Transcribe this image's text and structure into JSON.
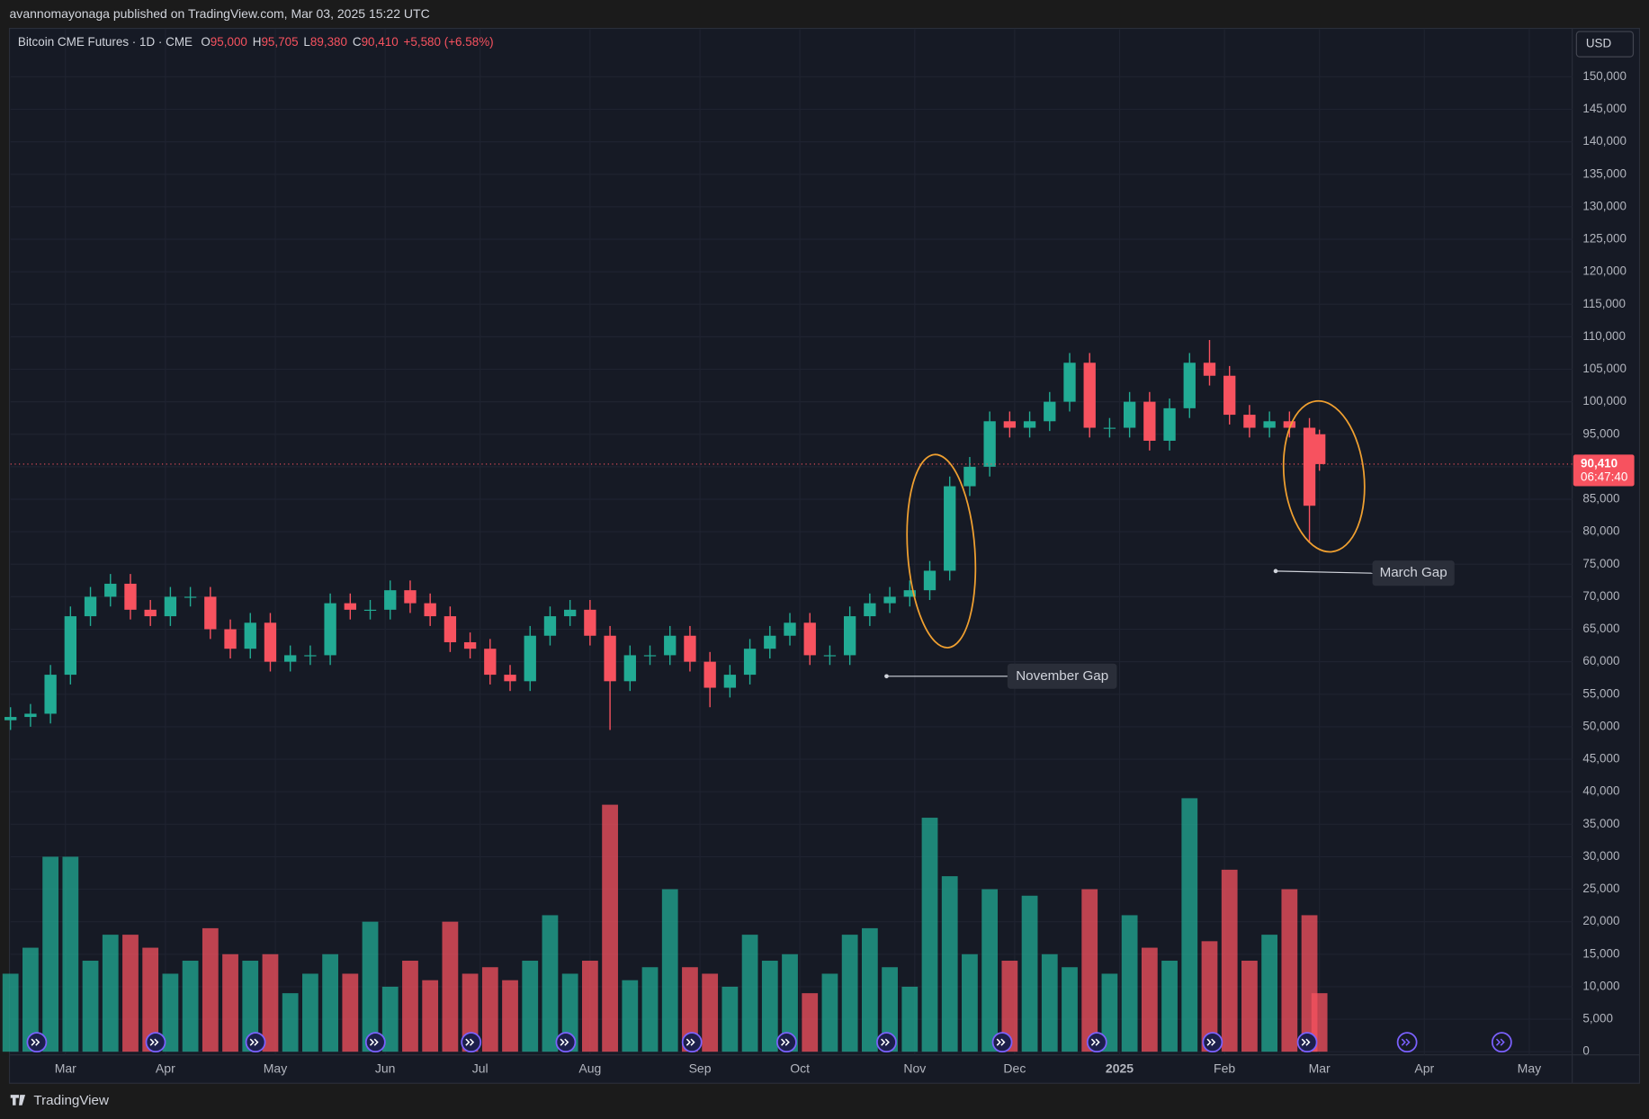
{
  "header": {
    "title": "avannomayonaga published on TradingView.com, Mar 03, 2025 15:22 UTC"
  },
  "legend": {
    "symbol": "Bitcoin CME Futures · 1D · CME",
    "items": [
      {
        "key": "O",
        "value": "95,000"
      },
      {
        "key": "H",
        "value": "95,705"
      },
      {
        "key": "L",
        "value": "89,380"
      },
      {
        "key": "C",
        "value": "90,410"
      }
    ],
    "change": "+5,580 (+6.58%)"
  },
  "currency": "USD",
  "footer": {
    "brand": "TradingView"
  },
  "chart_data": {
    "type": "candlestick",
    "up_color": "#22ab94",
    "down_color": "#f7525f",
    "grid": true,
    "x": [
      0,
      4,
      8,
      12,
      16,
      20,
      24,
      28,
      32,
      36,
      40,
      44,
      48,
      52,
      56,
      60,
      64,
      68,
      72,
      76,
      80,
      84,
      88,
      92,
      96,
      100,
      104,
      108,
      112,
      116,
      120,
      124,
      128,
      132,
      136,
      140,
      144,
      148,
      152,
      156,
      160,
      164,
      168,
      172,
      176,
      180,
      184,
      188,
      192,
      196,
      200,
      204,
      208,
      212,
      216,
      220,
      224,
      228,
      232,
      236,
      240,
      244,
      248,
      252,
      256,
      260,
      262
    ],
    "open": [
      51000,
      51500,
      52000,
      58000,
      67000,
      70000,
      72000,
      68000,
      67000,
      70000,
      70000,
      65000,
      62000,
      66000,
      60000,
      61000,
      61000,
      69000,
      68000,
      68000,
      71000,
      69000,
      67000,
      63000,
      62000,
      58000,
      57000,
      64000,
      67000,
      68000,
      64000,
      57000,
      61000,
      61000,
      64000,
      60000,
      56000,
      58000,
      62000,
      64000,
      66000,
      61000,
      61000,
      67000,
      69000,
      70000,
      71000,
      74000,
      87000,
      90000,
      97000,
      96000,
      97000,
      100000,
      106000,
      96000,
      96000,
      100000,
      94000,
      99000,
      106000,
      104000,
      98000,
      96000,
      97000,
      96000,
      95000
    ],
    "high": [
      53000,
      53500,
      59500,
      68500,
      71500,
      73500,
      73500,
      69500,
      71500,
      71500,
      71500,
      66500,
      67500,
      67500,
      62500,
      62500,
      70500,
      70500,
      69500,
      72500,
      72500,
      70500,
      68500,
      64500,
      63500,
      59500,
      65500,
      68500,
      69500,
      69500,
      65500,
      62500,
      62500,
      65500,
      65500,
      61500,
      59500,
      63500,
      65500,
      67500,
      67500,
      62500,
      68500,
      70500,
      71500,
      72500,
      75500,
      88500,
      91500,
      98500,
      98500,
      98500,
      101500,
      107500,
      107500,
      97500,
      101500,
      101500,
      100500,
      107500,
      109500,
      105500,
      99500,
      98500,
      98500,
      97500,
      95705
    ],
    "low": [
      49500,
      50000,
      50500,
      56500,
      65500,
      68500,
      66500,
      65500,
      65500,
      68500,
      63500,
      60500,
      60500,
      58500,
      58500,
      59500,
      59500,
      66500,
      66500,
      66500,
      67500,
      65500,
      61500,
      60500,
      56500,
      55500,
      55500,
      62500,
      65500,
      62500,
      49500,
      55500,
      59500,
      59500,
      58500,
      53000,
      54500,
      56500,
      60500,
      62500,
      59500,
      59500,
      59500,
      65500,
      67500,
      68500,
      69500,
      72500,
      85500,
      88500,
      94500,
      94500,
      95500,
      98500,
      94500,
      94500,
      94500,
      92500,
      92500,
      97500,
      102500,
      96500,
      94500,
      94500,
      94500,
      78500,
      89380
    ],
    "close": [
      51500,
      52000,
      58000,
      67000,
      70000,
      72000,
      68000,
      67000,
      70000,
      70000,
      65000,
      62000,
      66000,
      60000,
      61000,
      61000,
      69000,
      68000,
      68000,
      71000,
      69000,
      67000,
      63000,
      62000,
      58000,
      57000,
      64000,
      67000,
      68000,
      64000,
      57000,
      61000,
      61000,
      64000,
      60000,
      56000,
      58000,
      62000,
      64000,
      66000,
      61000,
      61000,
      67000,
      69000,
      70000,
      71000,
      74000,
      87000,
      90000,
      97000,
      96000,
      97000,
      100000,
      106000,
      96000,
      96000,
      100000,
      94000,
      99000,
      106000,
      104000,
      98000,
      96000,
      97000,
      96000,
      84000,
      90410
    ],
    "volume": [
      12000,
      16000,
      30000,
      30000,
      14000,
      18000,
      18000,
      16000,
      12000,
      14000,
      19000,
      15000,
      14000,
      15000,
      9000,
      12000,
      15000,
      12000,
      20000,
      10000,
      14000,
      11000,
      20000,
      12000,
      13000,
      11000,
      14000,
      21000,
      12000,
      14000,
      38000,
      11000,
      13000,
      25000,
      13000,
      12000,
      10000,
      18000,
      14000,
      15000,
      9000,
      12000,
      18000,
      19000,
      13000,
      10000,
      36000,
      27000,
      15000,
      25000,
      14000,
      24000,
      15000,
      13000,
      25000,
      12000,
      21000,
      16000,
      14000,
      39000,
      17000,
      28000,
      14000,
      18000,
      25000,
      21000,
      9000
    ],
    "xlim": [
      0,
      312.6
    ],
    "xticks": [
      {
        "value": 11,
        "label": "Mar"
      },
      {
        "value": 31,
        "label": "Apr"
      },
      {
        "value": 53,
        "label": "May"
      },
      {
        "value": 75,
        "label": "Jun"
      },
      {
        "value": 94,
        "label": "Jul"
      },
      {
        "value": 116,
        "label": "Aug"
      },
      {
        "value": 138,
        "label": "Sep"
      },
      {
        "value": 158,
        "label": "Oct"
      },
      {
        "value": 181,
        "label": "Nov"
      },
      {
        "value": 201,
        "label": "Dec"
      },
      {
        "value": 222,
        "label": "2025"
      },
      {
        "value": 243,
        "label": "Feb"
      },
      {
        "value": 262,
        "label": "Mar"
      },
      {
        "value": 283,
        "label": "Apr"
      },
      {
        "value": 304,
        "label": "May"
      }
    ],
    "ylim": [
      -485,
      157282
    ],
    "yticks": [
      0,
      {
        "value": 5000,
        "label": "5,000"
      },
      {
        "value": 10000,
        "label": "10,000"
      },
      {
        "value": 15000,
        "label": "15,000"
      },
      {
        "value": 20000,
        "label": "20,000"
      },
      {
        "value": 25000,
        "label": "25,000"
      },
      {
        "value": 30000,
        "label": "30,000"
      },
      {
        "value": 35000,
        "label": "35,000"
      },
      {
        "value": 40000,
        "label": "40,000"
      },
      {
        "value": 45000,
        "label": "45,000"
      },
      {
        "value": 50000,
        "label": "50,000"
      },
      {
        "value": 55000,
        "label": "55,000"
      },
      {
        "value": 60000,
        "label": "60,000"
      },
      {
        "value": 65000,
        "label": "65,000"
      },
      {
        "value": 70000,
        "label": "70,000"
      },
      {
        "value": 75000,
        "label": "75,000"
      },
      {
        "value": 80000,
        "label": "80,000"
      },
      {
        "value": 85000,
        "label": "85,000"
      },
      {
        "value": 90000,
        "label": "90,000"
      },
      {
        "value": 95000,
        "label": "95,000"
      },
      {
        "value": 100000,
        "label": "100,000"
      },
      {
        "value": 105000,
        "label": "105,000"
      },
      {
        "value": 110000,
        "label": "110,000"
      },
      {
        "value": 115000,
        "label": "115,000"
      },
      {
        "value": 120000,
        "label": "120,000"
      },
      {
        "value": 125000,
        "label": "125,000"
      },
      {
        "value": 130000,
        "label": "130,000"
      },
      {
        "value": 135000,
        "label": "135,000"
      },
      {
        "value": 140000,
        "label": "140,000"
      },
      {
        "value": 145000,
        "label": "145,000"
      },
      {
        "value": 150000,
        "label": "150,000"
      }
    ],
    "last_price": {
      "value": 90410,
      "label": "90,410"
    },
    "countdown": "06:47:40",
    "annotations": [
      "November Gap",
      "March Gap"
    ]
  }
}
